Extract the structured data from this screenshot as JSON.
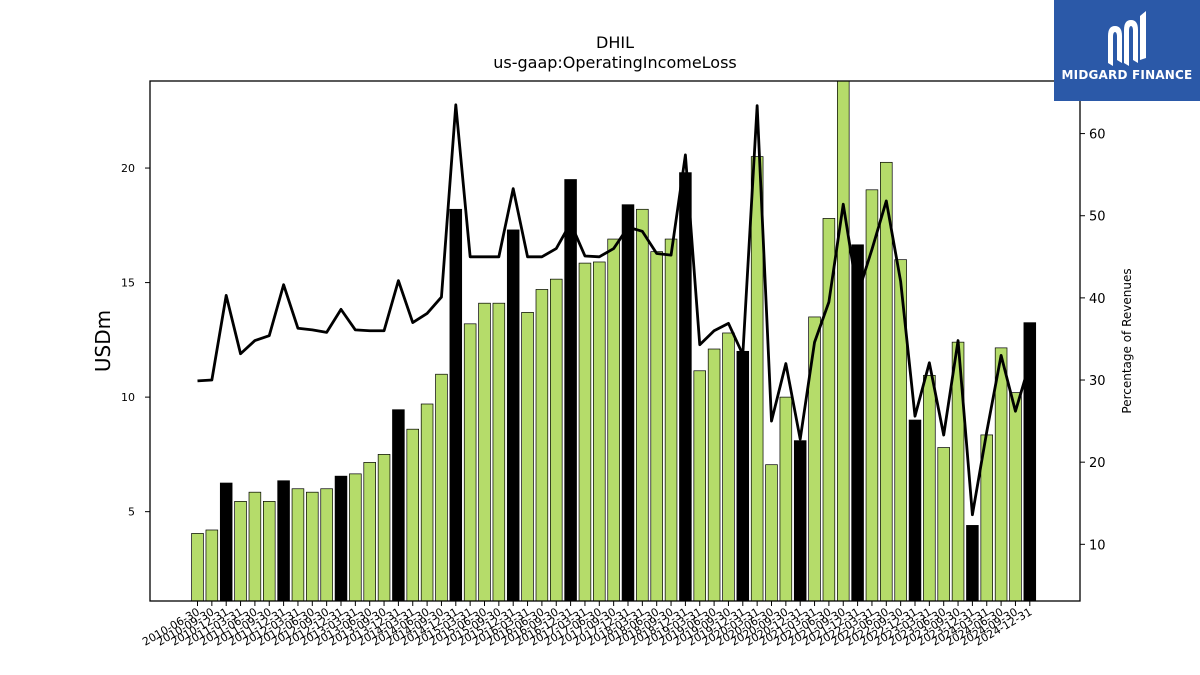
{
  "chart_data": {
    "type": "bar",
    "title": "DHIL",
    "subtitle": "us-gaap:OperatingIncomeLoss",
    "ylabel": "USDm",
    "y2label": "Percentage of Revenues",
    "ylim": [
      1.1,
      23.8
    ],
    "y2lim": [
      3.1,
      66.4
    ],
    "yticks": [
      5,
      10,
      15,
      20
    ],
    "y2ticks": [
      10,
      20,
      30,
      40,
      50,
      60
    ],
    "categories": [
      "2010-06-30",
      "2010-09-30",
      "2010-12-31",
      "2011-03-31",
      "2011-06-30",
      "2011-09-30",
      "2011-12-31",
      "2012-03-31",
      "2012-06-30",
      "2012-09-30",
      "2012-12-31",
      "2013-03-31",
      "2013-06-30",
      "2013-09-30",
      "2013-12-31",
      "2014-03-31",
      "2014-06-30",
      "2014-09-30",
      "2014-12-31",
      "2015-03-31",
      "2015-06-30",
      "2015-09-30",
      "2015-12-31",
      "2016-03-31",
      "2016-06-30",
      "2016-09-30",
      "2016-12-31",
      "2017-03-31",
      "2017-06-30",
      "2017-09-30",
      "2017-12-31",
      "2018-03-31",
      "2018-06-30",
      "2018-09-30",
      "2018-12-31",
      "2019-03-31",
      "2019-06-30",
      "2019-09-30",
      "2019-12-31",
      "2020-03-31",
      "2020-06-30",
      "2020-09-30",
      "2020-12-31",
      "2021-03-31",
      "2021-06-30",
      "2021-09-30",
      "2021-12-31",
      "2022-03-31",
      "2022-06-30",
      "2022-09-30",
      "2022-12-31",
      "2023-03-31",
      "2023-06-30",
      "2023-09-30",
      "2023-12-31",
      "2024-03-31",
      "2024-06-30",
      "2024-09-30",
      "2024-12-31"
    ],
    "series": [
      {
        "kind": "bar",
        "values": [
          4.05,
          4.2,
          6.25,
          5.45,
          5.85,
          5.45,
          6.35,
          6.0,
          5.85,
          6.0,
          6.55,
          6.65,
          7.15,
          7.5,
          9.45,
          8.6,
          9.7,
          11.0,
          18.2,
          13.2,
          14.1,
          14.1,
          17.3,
          13.7,
          14.7,
          15.15,
          19.5,
          15.85,
          15.9,
          16.9,
          18.4,
          18.2,
          16.35,
          16.9,
          19.8,
          11.15,
          12.1,
          12.8,
          12.0,
          20.5,
          7.05,
          10.0,
          8.1,
          13.5,
          17.8,
          23.9,
          16.65,
          19.05,
          20.25,
          16.0,
          9.0,
          10.95,
          7.8,
          12.4,
          4.4,
          8.35,
          12.15,
          10.2,
          13.25
        ],
        "highlight": [
          false,
          false,
          true,
          false,
          false,
          false,
          true,
          false,
          false,
          false,
          true,
          false,
          false,
          false,
          true,
          false,
          false,
          false,
          true,
          false,
          false,
          false,
          true,
          false,
          false,
          false,
          true,
          false,
          false,
          false,
          true,
          false,
          false,
          false,
          true,
          false,
          false,
          false,
          true,
          false,
          false,
          false,
          true,
          false,
          false,
          false,
          true,
          false,
          false,
          false,
          true,
          false,
          false,
          false,
          true,
          false,
          false,
          false,
          true
        ],
        "color": "#b5dc6a",
        "highlight_color": "#000000"
      },
      {
        "kind": "line",
        "axis": "right",
        "values": [
          29.9,
          30.0,
          40.3,
          33.2,
          34.8,
          35.4,
          41.6,
          36.3,
          36.1,
          35.8,
          38.6,
          36.1,
          36.0,
          36.0,
          42.1,
          37.0,
          38.1,
          40.1,
          63.5,
          45.0,
          45.0,
          45.0,
          53.3,
          45.0,
          45.0,
          46.0,
          49.1,
          45.1,
          45.0,
          46.0,
          48.6,
          48.1,
          45.4,
          45.2,
          57.4,
          34.3,
          36.0,
          36.9,
          33.1,
          63.4,
          25.0,
          32.0,
          22.8,
          34.6,
          39.5,
          51.4,
          40.4,
          45.9,
          51.8,
          42.0,
          25.6,
          32.1,
          23.3,
          34.8,
          13.6,
          23.7,
          33.0,
          26.2,
          32.1
        ],
        "color": "#000000"
      }
    ],
    "grid": false,
    "legend": "none"
  },
  "logo": {
    "name": "MIDGARD FINANCE",
    "color": "#2b59a8",
    "icon": "midgard-logo-icon"
  }
}
